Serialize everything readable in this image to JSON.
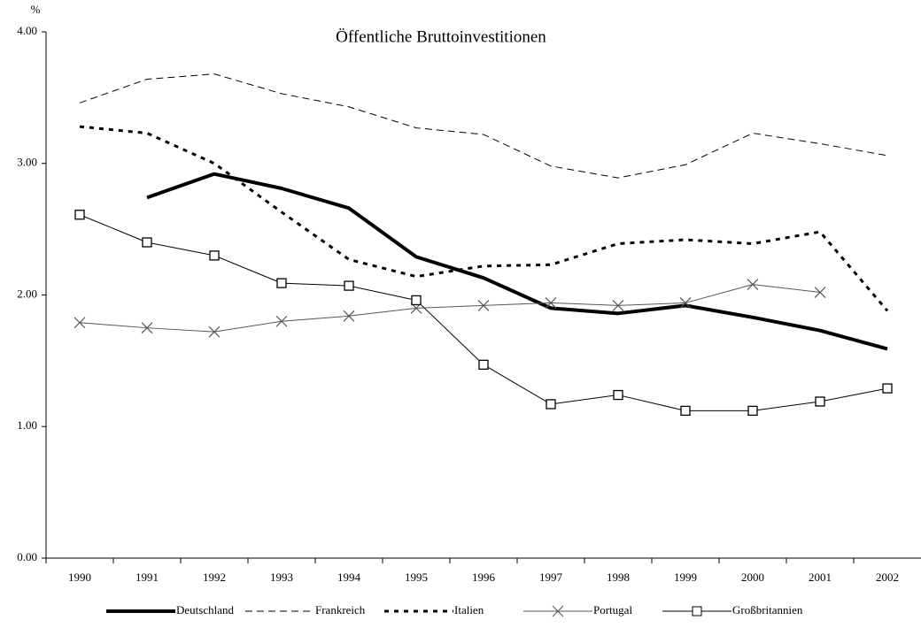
{
  "chart_data": {
    "type": "line",
    "title": "Öffentliche Bruttoinvestitionen",
    "y_label": "%",
    "categories": [
      "1990",
      "1991",
      "1992",
      "1993",
      "1994",
      "1995",
      "1996",
      "1997",
      "1998",
      "1999",
      "2000",
      "2001",
      "2002"
    ],
    "ylim": [
      0,
      4
    ],
    "yticks": [
      {
        "value": 0,
        "label": "0.00"
      },
      {
        "value": 1,
        "label": "1.00"
      },
      {
        "value": 2,
        "label": "2.00"
      },
      {
        "value": 3,
        "label": "3.00"
      },
      {
        "value": 4,
        "label": "4.00"
      }
    ],
    "legend": "bottom",
    "series": [
      {
        "name": "Deutschland",
        "color": "#000000",
        "width": 4,
        "dash": "none",
        "marker": "none",
        "values": [
          null,
          2.74,
          2.92,
          2.81,
          2.66,
          2.29,
          2.13,
          1.9,
          1.86,
          1.92,
          1.83,
          1.73,
          1.59
        ]
      },
      {
        "name": "Frankreich",
        "color": "#000000",
        "width": 1,
        "dash": "8 5",
        "marker": "none",
        "values": [
          3.46,
          3.64,
          3.68,
          3.53,
          3.43,
          3.27,
          3.22,
          2.98,
          2.89,
          2.99,
          3.23,
          3.15,
          3.06
        ]
      },
      {
        "name": "Italien",
        "color": "#000000",
        "width": 3,
        "dash": "5 6",
        "marker": "none",
        "values": [
          3.28,
          3.23,
          3.0,
          2.63,
          2.27,
          2.14,
          2.22,
          2.23,
          2.39,
          2.42,
          2.39,
          2.48,
          1.88
        ]
      },
      {
        "name": "Portugal",
        "color": "#555555",
        "width": 1,
        "dash": "none",
        "marker": "x",
        "values": [
          1.79,
          1.75,
          1.72,
          1.8,
          1.84,
          1.9,
          1.92,
          1.94,
          1.92,
          1.94,
          2.08,
          2.02,
          null
        ]
      },
      {
        "name": "Großbritannien",
        "color": "#000000",
        "width": 1,
        "dash": "none",
        "marker": "square",
        "values": [
          2.61,
          2.4,
          2.3,
          2.09,
          2.07,
          1.96,
          1.47,
          1.17,
          1.24,
          1.12,
          1.12,
          1.19,
          1.29
        ]
      }
    ]
  }
}
